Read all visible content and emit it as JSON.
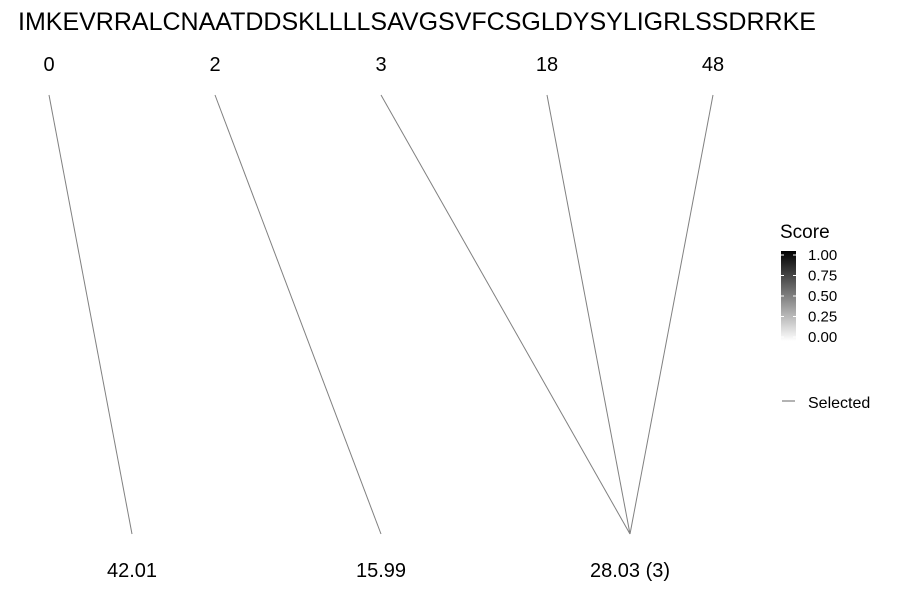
{
  "chart_data": {
    "type": "diagram",
    "sequence": "IMKEVRRALCNAATDDSKLLLLSAVGSVFCSGLDYSYLIGRLSSDRRKE",
    "top_labels": [
      "0",
      "2",
      "3",
      "18",
      "48"
    ],
    "bottom_labels": [
      "42.01",
      "15.99",
      "28.03 (3)"
    ],
    "links": [
      {
        "from": "0",
        "to": "42.01"
      },
      {
        "from": "2",
        "to": "15.99"
      },
      {
        "from": "3",
        "to": "28.03 (3)"
      },
      {
        "from": "18",
        "to": "28.03 (3)"
      },
      {
        "from": "48",
        "to": "28.03 (3)"
      }
    ],
    "legend": {
      "title": "Score",
      "ticks": [
        "1.00",
        "0.75",
        "0.50",
        "0.25",
        "0.00"
      ],
      "gradient_colors": [
        "#000000",
        "#ffffff"
      ],
      "line_item": "Selected",
      "line_color": "#808080"
    }
  }
}
